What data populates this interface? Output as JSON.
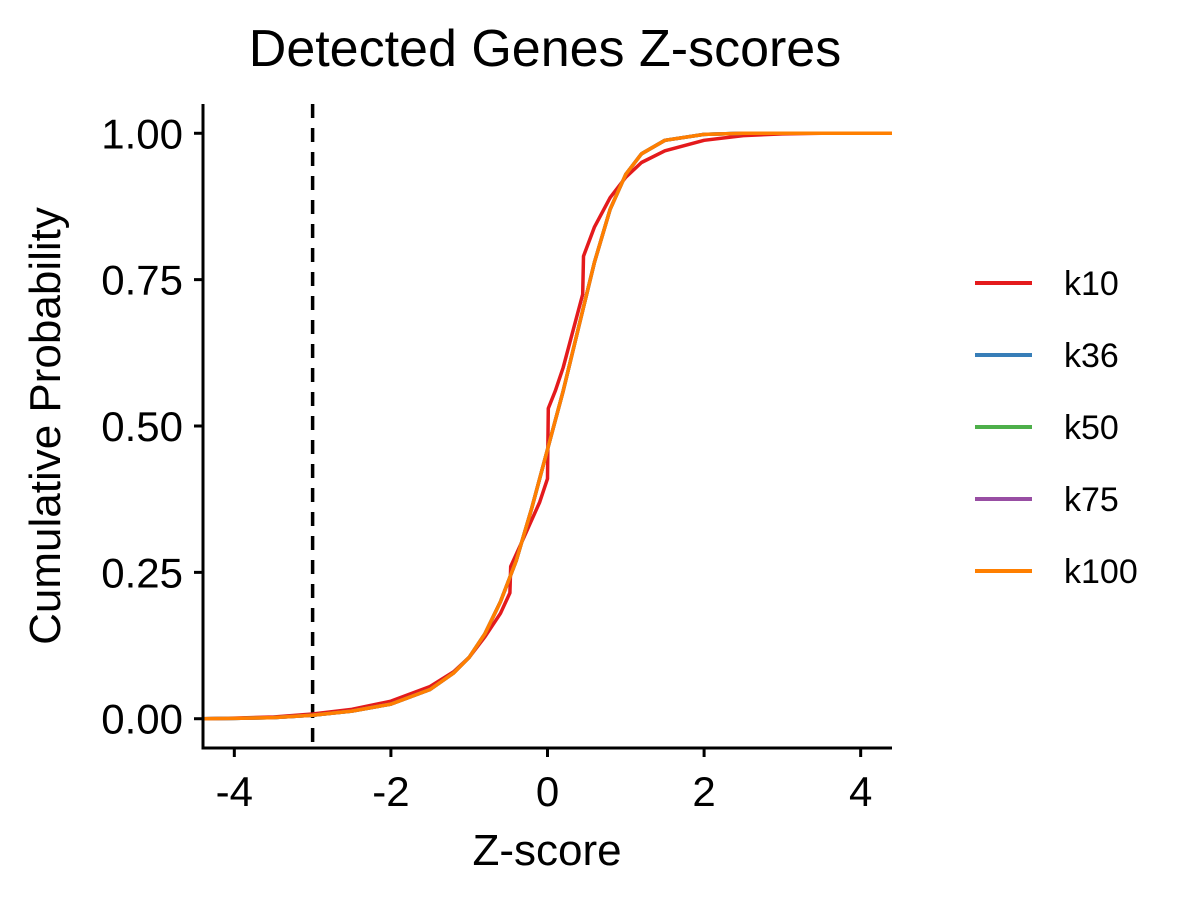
{
  "chart_data": {
    "type": "line",
    "title": "Detected Genes Z-scores",
    "xlabel": "Z-score",
    "ylabel": "Cumulative Probability",
    "xlim": [
      -4.4,
      4.4
    ],
    "ylim": [
      -0.05,
      1.05
    ],
    "x_ticks": [
      -4,
      -2,
      0,
      2,
      4
    ],
    "x_tick_labels": [
      "-4",
      "-2",
      "0",
      "2",
      "4"
    ],
    "y_ticks": [
      0,
      0.25,
      0.5,
      0.75,
      1
    ],
    "y_tick_labels": [
      "0.00",
      "0.25",
      "0.50",
      "0.75",
      "1.00"
    ],
    "grid": false,
    "legend_position": "right",
    "reference_line": {
      "axis": "x",
      "value": -3,
      "style": "dashed",
      "color": "#000000"
    },
    "series": [
      {
        "name": "k10",
        "color": "#E41A1C",
        "points": [
          [
            -4.4,
            0.0
          ],
          [
            -4.0,
            0.001
          ],
          [
            -3.5,
            0.003
          ],
          [
            -3.0,
            0.008
          ],
          [
            -2.5,
            0.016
          ],
          [
            -2.0,
            0.03
          ],
          [
            -1.5,
            0.055
          ],
          [
            -1.2,
            0.08
          ],
          [
            -1.0,
            0.105
          ],
          [
            -0.8,
            0.14
          ],
          [
            -0.6,
            0.18
          ],
          [
            -0.48,
            0.215
          ],
          [
            -0.47,
            0.26
          ],
          [
            -0.3,
            0.31
          ],
          [
            -0.1,
            0.37
          ],
          [
            0.0,
            0.41
          ],
          [
            0.01,
            0.53
          ],
          [
            0.1,
            0.56
          ],
          [
            0.2,
            0.6
          ],
          [
            0.3,
            0.65
          ],
          [
            0.45,
            0.725
          ],
          [
            0.46,
            0.79
          ],
          [
            0.6,
            0.84
          ],
          [
            0.8,
            0.89
          ],
          [
            1.0,
            0.925
          ],
          [
            1.2,
            0.95
          ],
          [
            1.5,
            0.97
          ],
          [
            2.0,
            0.988
          ],
          [
            2.5,
            0.996
          ],
          [
            3.0,
            0.999
          ],
          [
            3.5,
            1.0
          ],
          [
            4.4,
            1.0
          ]
        ]
      },
      {
        "name": "k36",
        "color": "#377EB8",
        "points": [
          [
            -4.4,
            0.0
          ],
          [
            -4.0,
            0.0005
          ],
          [
            -3.5,
            0.002
          ],
          [
            -3.0,
            0.006
          ],
          [
            -2.5,
            0.013
          ],
          [
            -2.0,
            0.025
          ],
          [
            -1.5,
            0.05
          ],
          [
            -1.2,
            0.078
          ],
          [
            -1.0,
            0.105
          ],
          [
            -0.8,
            0.145
          ],
          [
            -0.6,
            0.2
          ],
          [
            -0.4,
            0.27
          ],
          [
            -0.2,
            0.36
          ],
          [
            0.0,
            0.46
          ],
          [
            0.2,
            0.56
          ],
          [
            0.4,
            0.67
          ],
          [
            0.6,
            0.78
          ],
          [
            0.8,
            0.87
          ],
          [
            1.0,
            0.93
          ],
          [
            1.2,
            0.965
          ],
          [
            1.5,
            0.988
          ],
          [
            2.0,
            0.998
          ],
          [
            2.5,
            1.0
          ],
          [
            4.4,
            1.0
          ]
        ]
      },
      {
        "name": "k50",
        "color": "#4DAF4A",
        "points": [
          [
            -4.4,
            0.0
          ],
          [
            -4.0,
            0.0005
          ],
          [
            -3.5,
            0.002
          ],
          [
            -3.0,
            0.006
          ],
          [
            -2.5,
            0.013
          ],
          [
            -2.0,
            0.025
          ],
          [
            -1.5,
            0.05
          ],
          [
            -1.2,
            0.078
          ],
          [
            -1.0,
            0.105
          ],
          [
            -0.8,
            0.145
          ],
          [
            -0.6,
            0.2
          ],
          [
            -0.4,
            0.27
          ],
          [
            -0.2,
            0.36
          ],
          [
            0.0,
            0.46
          ],
          [
            0.2,
            0.56
          ],
          [
            0.4,
            0.67
          ],
          [
            0.6,
            0.78
          ],
          [
            0.8,
            0.87
          ],
          [
            1.0,
            0.93
          ],
          [
            1.2,
            0.965
          ],
          [
            1.5,
            0.988
          ],
          [
            2.0,
            0.998
          ],
          [
            2.5,
            1.0
          ],
          [
            4.4,
            1.0
          ]
        ]
      },
      {
        "name": "k75",
        "color": "#984EA3",
        "points": [
          [
            -4.4,
            0.0
          ],
          [
            -4.0,
            0.0005
          ],
          [
            -3.5,
            0.002
          ],
          [
            -3.0,
            0.006
          ],
          [
            -2.5,
            0.013
          ],
          [
            -2.0,
            0.025
          ],
          [
            -1.5,
            0.05
          ],
          [
            -1.2,
            0.078
          ],
          [
            -1.0,
            0.105
          ],
          [
            -0.8,
            0.145
          ],
          [
            -0.6,
            0.2
          ],
          [
            -0.4,
            0.27
          ],
          [
            -0.2,
            0.36
          ],
          [
            0.0,
            0.46
          ],
          [
            0.2,
            0.56
          ],
          [
            0.4,
            0.67
          ],
          [
            0.6,
            0.78
          ],
          [
            0.8,
            0.87
          ],
          [
            1.0,
            0.93
          ],
          [
            1.2,
            0.965
          ],
          [
            1.5,
            0.988
          ],
          [
            2.0,
            0.998
          ],
          [
            2.5,
            1.0
          ],
          [
            4.4,
            1.0
          ]
        ]
      },
      {
        "name": "k100",
        "color": "#FF7F00",
        "points": [
          [
            -4.4,
            0.0
          ],
          [
            -4.0,
            0.0005
          ],
          [
            -3.5,
            0.002
          ],
          [
            -3.0,
            0.006
          ],
          [
            -2.5,
            0.013
          ],
          [
            -2.0,
            0.025
          ],
          [
            -1.5,
            0.05
          ],
          [
            -1.2,
            0.078
          ],
          [
            -1.0,
            0.105
          ],
          [
            -0.8,
            0.145
          ],
          [
            -0.6,
            0.2
          ],
          [
            -0.4,
            0.27
          ],
          [
            -0.2,
            0.36
          ],
          [
            0.0,
            0.46
          ],
          [
            0.2,
            0.56
          ],
          [
            0.4,
            0.67
          ],
          [
            0.6,
            0.78
          ],
          [
            0.8,
            0.87
          ],
          [
            1.0,
            0.93
          ],
          [
            1.2,
            0.965
          ],
          [
            1.5,
            0.988
          ],
          [
            2.0,
            0.998
          ],
          [
            2.5,
            1.0
          ],
          [
            4.4,
            1.0
          ]
        ]
      }
    ]
  }
}
